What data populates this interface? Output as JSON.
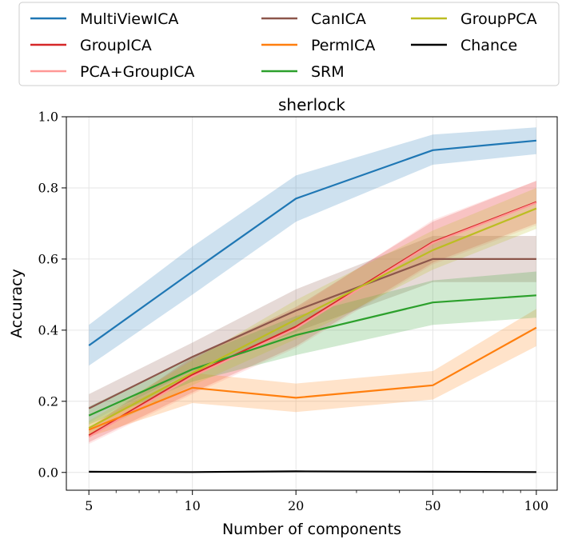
{
  "chart_data": {
    "type": "line",
    "title": "sherlock",
    "xlabel": "Number of components",
    "ylabel": "Accuracy",
    "x_scale": "log",
    "x": [
      5,
      10,
      20,
      50,
      100
    ],
    "xticks": [
      "5",
      "10",
      "20",
      "50",
      "100"
    ],
    "xlim": [
      4.3,
      115
    ],
    "ylim": [
      -0.05,
      1.0
    ],
    "yticks": [
      "0.0",
      "0.2",
      "0.4",
      "0.6",
      "0.8",
      "1.0"
    ],
    "grid": true,
    "legend_position": "top",
    "series": [
      {
        "name": "MultiViewICA",
        "color": "#1f77b4",
        "values": [
          0.357,
          0.565,
          0.77,
          0.906,
          0.933
        ],
        "lower": [
          0.3,
          0.5,
          0.705,
          0.865,
          0.895
        ],
        "upper": [
          0.415,
          0.635,
          0.835,
          0.95,
          0.97
        ]
      },
      {
        "name": "GroupICA",
        "color": "#d62728",
        "values": [
          0.104,
          0.275,
          0.41,
          0.648,
          0.76
        ],
        "lower": [
          0.085,
          0.225,
          0.355,
          0.59,
          0.7
        ],
        "upper": [
          0.125,
          0.325,
          0.465,
          0.705,
          0.82
        ]
      },
      {
        "name": "PCA+GroupICA",
        "color": "#ff9896",
        "values": [
          0.1,
          0.27,
          0.405,
          0.645,
          0.758
        ],
        "lower": [
          0.08,
          0.22,
          0.35,
          0.585,
          0.695
        ],
        "upper": [
          0.12,
          0.32,
          0.46,
          0.71,
          0.82
        ]
      },
      {
        "name": "CanICA",
        "color": "#8c564b",
        "values": [
          0.18,
          0.325,
          0.455,
          0.6,
          0.6
        ],
        "lower": [
          0.14,
          0.285,
          0.395,
          0.535,
          0.535
        ],
        "upper": [
          0.22,
          0.365,
          0.515,
          0.665,
          0.665
        ]
      },
      {
        "name": "PermICA",
        "color": "#ff7f0e",
        "values": [
          0.12,
          0.238,
          0.21,
          0.245,
          0.407
        ],
        "lower": [
          0.1,
          0.195,
          0.17,
          0.205,
          0.355
        ],
        "upper": [
          0.14,
          0.28,
          0.25,
          0.285,
          0.46
        ]
      },
      {
        "name": "SRM",
        "color": "#2ca02c",
        "values": [
          0.16,
          0.29,
          0.386,
          0.478,
          0.498
        ],
        "lower": [
          0.135,
          0.255,
          0.33,
          0.415,
          0.435
        ],
        "upper": [
          0.185,
          0.325,
          0.44,
          0.54,
          0.565
        ]
      },
      {
        "name": "GroupPCA",
        "color": "#bcbd22",
        "values": [
          0.125,
          0.28,
          0.43,
          0.625,
          0.742
        ],
        "lower": [
          0.105,
          0.245,
          0.375,
          0.57,
          0.685
        ],
        "upper": [
          0.145,
          0.315,
          0.485,
          0.68,
          0.8
        ]
      },
      {
        "name": "Chance",
        "color": "#000000",
        "values": [
          0.002,
          0.001,
          0.003,
          0.002,
          0.001
        ]
      }
    ]
  }
}
